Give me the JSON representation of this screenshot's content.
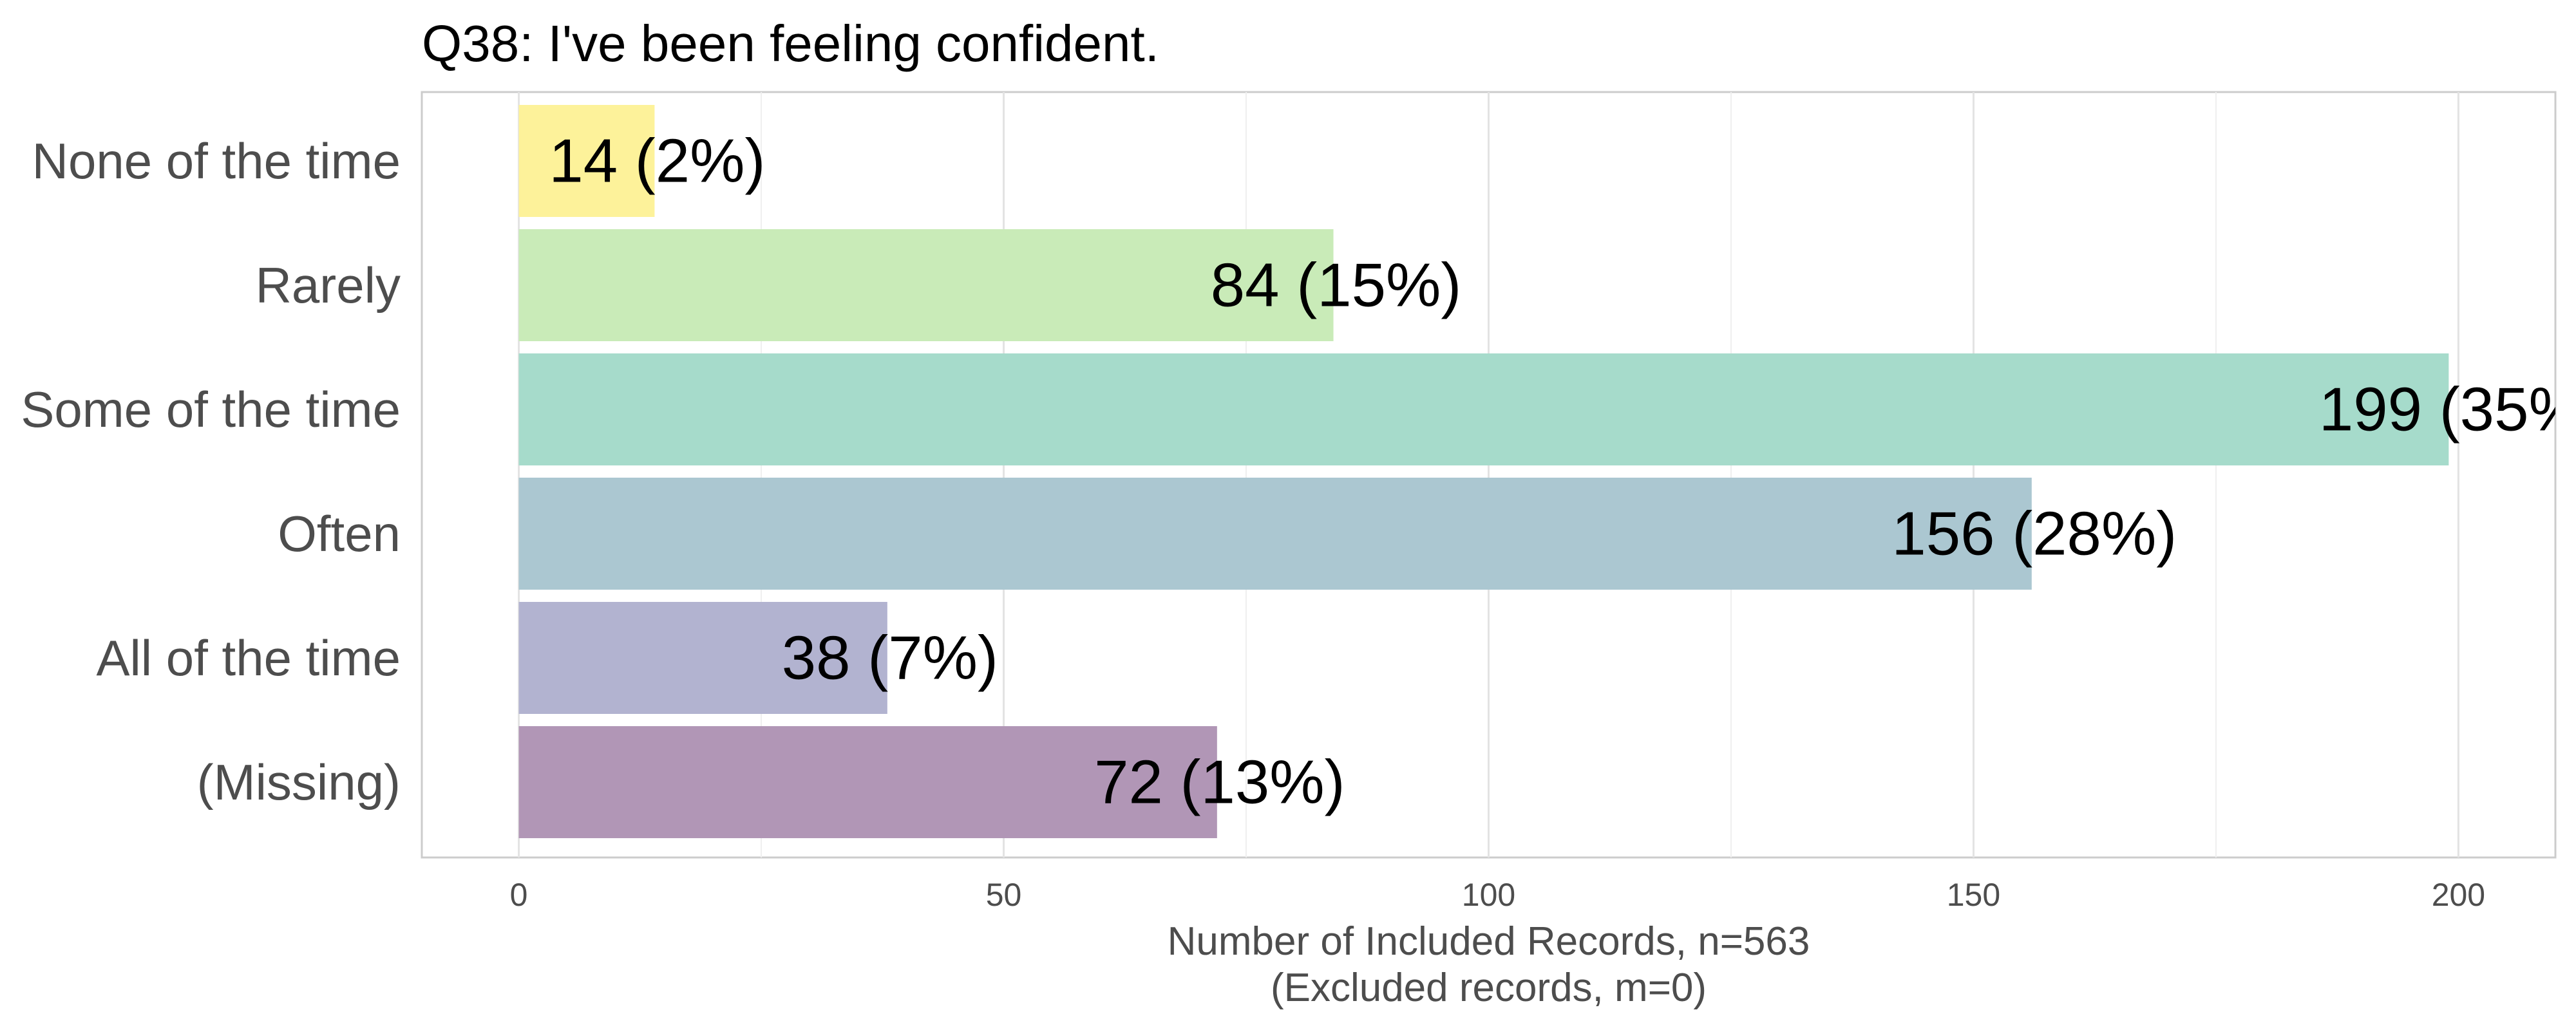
{
  "chart_data": {
    "type": "bar",
    "orientation": "horizontal",
    "title": "Q38: I've been feeling confident.",
    "categories": [
      "None of the time",
      "Rarely",
      "Some of the time",
      "Often",
      "All of the time",
      "(Missing)"
    ],
    "values": [
      14,
      84,
      199,
      156,
      38,
      72
    ],
    "data_labels": [
      "14 (2%)",
      "84 (15%)",
      "199 (35%",
      "156 (28%)",
      "38 (7%)",
      "72 (13%)"
    ],
    "colors": [
      "#fdf29a",
      "#c9ebb8",
      "#a6dbcb",
      "#abc7d1",
      "#b2b3d0",
      "#b196b6"
    ],
    "xlabel": "Number of Included Records, n=563",
    "xlabel_sub": "(Excluded records, m=0)",
    "xlim": [
      -10,
      210
    ],
    "xticks": [
      0,
      50,
      100,
      150,
      200
    ],
    "grid": true
  }
}
